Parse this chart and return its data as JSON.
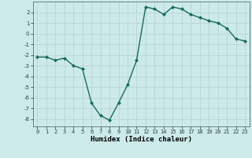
{
  "x": [
    0,
    1,
    2,
    3,
    4,
    5,
    6,
    7,
    8,
    9,
    10,
    11,
    12,
    13,
    14,
    15,
    16,
    17,
    18,
    19,
    20,
    21,
    22,
    23
  ],
  "y": [
    -2.2,
    -2.2,
    -2.5,
    -2.3,
    -3.0,
    -3.3,
    -6.5,
    -7.7,
    -8.1,
    -6.5,
    -4.8,
    -2.5,
    2.5,
    2.3,
    1.8,
    2.5,
    2.3,
    1.8,
    1.5,
    1.2,
    1.0,
    0.5,
    -0.5,
    -0.7
  ],
  "xlabel": "Humidex (Indice chaleur)",
  "xlim_min": -0.5,
  "xlim_max": 23.5,
  "ylim_min": -8.7,
  "ylim_max": 3.0,
  "yticks": [
    2,
    1,
    0,
    -1,
    -2,
    -3,
    -4,
    -5,
    -6,
    -7,
    -8
  ],
  "xtick_labels": [
    "0",
    "1",
    "2",
    "3",
    "4",
    "5",
    "6",
    "7",
    "8",
    "9",
    "10",
    "11",
    "12",
    "13",
    "14",
    "15",
    "16",
    "17",
    "18",
    "19",
    "20",
    "21",
    "22",
    "23"
  ],
  "line_color": "#1a6b5a",
  "marker": "D",
  "marker_size": 2.0,
  "bg_color": "#cceaea",
  "grid_color": "#b8d4d4",
  "line_width": 1.0,
  "tick_fontsize": 5.0,
  "xlabel_fontsize": 6.5
}
